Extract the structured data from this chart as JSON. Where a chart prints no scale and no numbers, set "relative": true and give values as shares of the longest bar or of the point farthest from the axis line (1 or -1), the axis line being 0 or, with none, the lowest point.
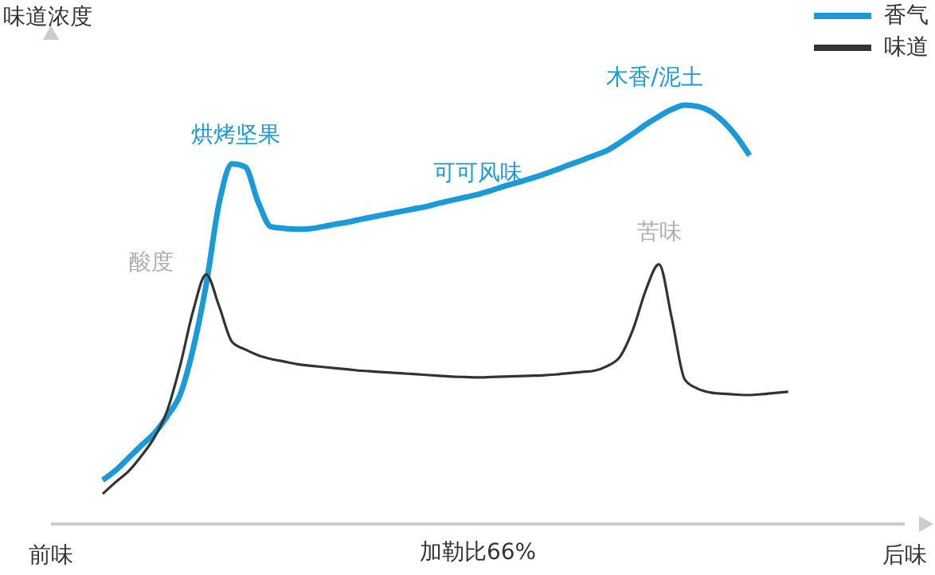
{
  "chart_data": {
    "type": "line",
    "relative": true,
    "xlabel": "加勒比66%",
    "ylabel": "味道浓度",
    "legend": "top right",
    "categories": [
      "前味",
      null,
      null,
      null,
      null,
      null,
      null,
      null,
      null,
      null,
      null,
      null,
      null,
      null,
      null,
      null,
      null,
      null,
      null,
      null,
      null,
      null,
      null,
      null,
      null,
      null,
      null,
      null,
      null,
      null,
      null,
      null,
      null,
      null,
      null,
      null,
      null,
      null,
      null,
      null,
      null,
      null,
      null,
      null,
      null,
      null,
      null,
      null,
      null,
      null,
      null,
      null,
      null,
      null,
      null,
      null,
      null,
      null,
      null,
      null,
      null,
      null,
      null,
      null,
      null,
      null,
      "后味"
    ],
    "series": [
      {
        "name": "香气",
        "color": "#1a9ad9",
        "values": [
          null,
          null,
          null,
          null,
          0.105,
          0.128,
          0.158,
          0.188,
          0.217,
          0.258,
          0.31,
          0.42,
          0.572,
          0.766,
          0.86,
          0.853,
          0.77,
          0.71,
          0.706,
          0.704,
          0.705,
          0.71,
          0.716,
          0.721,
          0.728,
          0.734,
          0.74,
          0.746,
          0.752,
          0.758,
          0.766,
          0.773,
          0.78,
          0.787,
          0.796,
          0.806,
          0.815,
          0.824,
          0.834,
          0.845,
          0.857,
          0.868,
          0.88,
          0.892,
          0.911,
          0.932,
          0.954,
          0.973,
          0.99,
          1,
          0.997,
          0.985,
          0.96,
          0.925,
          0.88,
          null,
          null,
          null,
          null,
          null,
          null,
          null,
          null,
          null,
          null,
          null,
          null
        ]
      },
      {
        "name": "味道",
        "color": "#333333",
        "values": [
          null,
          null,
          null,
          null,
          0.072,
          0.1,
          0.126,
          0.163,
          0.207,
          0.272,
          0.38,
          0.51,
          0.596,
          0.52,
          0.435,
          0.417,
          0.403,
          0.394,
          0.388,
          0.382,
          0.378,
          0.375,
          0.372,
          0.369,
          0.366,
          0.364,
          0.362,
          0.36,
          0.358,
          0.356,
          0.354,
          0.352,
          0.351,
          0.35,
          0.351,
          0.352,
          0.353,
          0.354,
          0.355,
          0.357,
          0.36,
          0.363,
          0.366,
          0.377,
          0.4,
          0.465,
          0.56,
          0.62,
          0.49,
          0.345,
          0.323,
          0.314,
          0.311,
          0.309,
          0.308,
          0.31,
          0.313,
          0.316,
          null,
          null,
          null,
          null,
          null,
          null,
          null,
          null,
          null
        ]
      }
    ],
    "annotations": [
      "烘烤坚果",
      "可可风味",
      "木香/泥土",
      "酸度",
      "苦味"
    ]
  }
}
